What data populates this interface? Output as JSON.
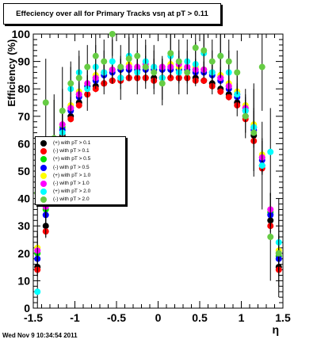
{
  "footer_text": "Wed Nov  9 10:34:54 2011",
  "chart_data": {
    "type": "scatter",
    "title": "Effeciency over all for Primary Tracks vsη at pT > 0.11",
    "xlabel": "η",
    "ylabel": "Efficiency (%)",
    "xlim": [
      -1.5,
      1.5
    ],
    "ylim": [
      0,
      100
    ],
    "x_ticks": [
      "-1.5",
      "-1",
      "-0.5",
      "0",
      "0.5",
      "1",
      "1.5"
    ],
    "y_ticks": [
      "0",
      "10",
      "20",
      "30",
      "40",
      "50",
      "60",
      "70",
      "80",
      "90",
      "100"
    ],
    "grid": false,
    "legend_position": "center-left",
    "series": [
      {
        "name": "(+) with pT > 0.1",
        "color": "#000000",
        "x": [
          -1.45,
          -1.35,
          -1.25,
          -1.15,
          -1.05,
          -0.95,
          -0.85,
          -0.75,
          -0.65,
          -0.55,
          -0.45,
          -0.35,
          -0.25,
          -0.15,
          -0.05,
          0.05,
          0.15,
          0.25,
          0.35,
          0.45,
          0.55,
          0.65,
          0.75,
          0.85,
          0.95,
          1.05,
          1.15,
          1.25,
          1.35,
          1.45
        ],
        "y": [
          15,
          30,
          50,
          63,
          70,
          75,
          78,
          81,
          82,
          83,
          84,
          84,
          84,
          84,
          84,
          84,
          84,
          84,
          84,
          84,
          83,
          82,
          80,
          78,
          75,
          70,
          63,
          52,
          32,
          15
        ]
      },
      {
        "name": "(-) with pT > 0.1",
        "color": "#ff0000",
        "x": [
          -1.45,
          -1.35,
          -1.25,
          -1.15,
          -1.05,
          -0.95,
          -0.85,
          -0.75,
          -0.65,
          -0.55,
          -0.45,
          -0.35,
          -0.25,
          -0.15,
          -0.05,
          0.05,
          0.15,
          0.25,
          0.35,
          0.45,
          0.55,
          0.65,
          0.75,
          0.85,
          0.95,
          1.05,
          1.15,
          1.25,
          1.35,
          1.45
        ],
        "y": [
          14,
          28,
          48,
          62,
          69,
          74,
          78,
          80,
          82,
          83,
          83,
          84,
          84,
          84,
          83,
          84,
          84,
          84,
          84,
          83,
          83,
          81,
          79,
          77,
          74,
          69,
          61,
          51,
          30,
          14
        ]
      },
      {
        "name": "(+) with pT > 0.5",
        "color": "#00dd00",
        "x": [
          -1.45,
          -1.35,
          -1.25,
          -1.15,
          -1.05,
          -0.95,
          -0.85,
          -0.75,
          -0.65,
          -0.55,
          -0.45,
          -0.35,
          -0.25,
          -0.15,
          -0.05,
          0.05,
          0.15,
          0.25,
          0.35,
          0.45,
          0.55,
          0.65,
          0.75,
          0.85,
          0.95,
          1.05,
          1.15,
          1.25,
          1.35,
          1.45
        ],
        "y": [
          20,
          36,
          55,
          66,
          73,
          78,
          81,
          84,
          86,
          87,
          87,
          88,
          88,
          88,
          87,
          88,
          88,
          87,
          88,
          87,
          87,
          86,
          84,
          81,
          78,
          73,
          66,
          55,
          35,
          19
        ]
      },
      {
        "name": "(-) with pT > 0.5",
        "color": "#0000ff",
        "x": [
          -1.45,
          -1.35,
          -1.25,
          -1.15,
          -1.05,
          -0.95,
          -0.85,
          -0.75,
          -0.65,
          -0.55,
          -0.45,
          -0.35,
          -0.25,
          -0.15,
          -0.05,
          0.05,
          0.15,
          0.25,
          0.35,
          0.45,
          0.55,
          0.65,
          0.75,
          0.85,
          0.95,
          1.05,
          1.15,
          1.25,
          1.35,
          1.45
        ],
        "y": [
          18,
          34,
          54,
          65,
          72,
          77,
          81,
          83,
          85,
          86,
          87,
          87,
          87,
          87,
          87,
          87,
          87,
          87,
          87,
          86,
          86,
          85,
          83,
          80,
          77,
          72,
          65,
          54,
          34,
          18
        ]
      },
      {
        "name": "(+) with pT > 1.0",
        "color": "#ffff00",
        "x": [
          -1.45,
          -1.35,
          -1.25,
          -1.15,
          -1.05,
          -0.95,
          -0.85,
          -0.75,
          -0.65,
          -0.55,
          -0.45,
          -0.35,
          -0.25,
          -0.15,
          -0.05,
          0.05,
          0.15,
          0.25,
          0.35,
          0.45,
          0.55,
          0.65,
          0.75,
          0.85,
          0.95,
          1.05,
          1.15,
          1.25,
          1.35,
          1.45
        ],
        "y": [
          22,
          38,
          56,
          67,
          74,
          79,
          82,
          85,
          86,
          87,
          88,
          89,
          88,
          88,
          88,
          88,
          89,
          88,
          88,
          88,
          87,
          86,
          85,
          82,
          79,
          74,
          67,
          56,
          36,
          21
        ]
      },
      {
        "name": "(-) with pT > 1.0",
        "color": "#ff00ff",
        "x": [
          -1.45,
          -1.35,
          -1.25,
          -1.15,
          -1.05,
          -0.95,
          -0.85,
          -0.75,
          -0.65,
          -0.55,
          -0.45,
          -0.35,
          -0.25,
          -0.15,
          -0.05,
          0.05,
          0.15,
          0.25,
          0.35,
          0.45,
          0.55,
          0.65,
          0.75,
          0.85,
          0.95,
          1.05,
          1.15,
          1.25,
          1.35,
          1.45
        ],
        "y": [
          21,
          37,
          56,
          67,
          73,
          78,
          82,
          84,
          86,
          87,
          88,
          88,
          88,
          89,
          88,
          88,
          88,
          89,
          88,
          87,
          87,
          86,
          84,
          81,
          78,
          73,
          66,
          55,
          36,
          20
        ]
      },
      {
        "name": "(+) with pT > 2.0",
        "color": "#00ffff",
        "x": [
          -1.45,
          -1.35,
          -1.25,
          -1.15,
          -1.05,
          -0.95,
          -0.85,
          -0.75,
          -0.65,
          -0.55,
          -0.45,
          -0.35,
          -0.25,
          -0.15,
          -0.05,
          0.05,
          0.15,
          0.25,
          0.35,
          0.45,
          0.55,
          0.65,
          0.75,
          0.85,
          0.95,
          1.05,
          1.15,
          1.25,
          1.35,
          1.45
        ],
        "y": [
          6,
          42,
          60,
          64,
          80,
          86,
          80,
          88,
          86,
          90,
          84,
          92,
          86,
          90,
          88,
          84,
          92,
          86,
          90,
          89,
          93,
          86,
          92,
          86,
          78,
          72,
          66,
          52,
          57,
          24
        ]
      },
      {
        "name": "(-) with pT > 2.0",
        "color": "#66cc44",
        "x": [
          -1.45,
          -1.35,
          -1.25,
          -1.15,
          -1.05,
          -0.95,
          -0.85,
          -0.75,
          -0.65,
          -0.55,
          -0.45,
          -0.35,
          -0.25,
          -0.15,
          -0.05,
          0.05,
          0.15,
          0.25,
          0.35,
          0.45,
          0.55,
          0.65,
          0.75,
          0.85,
          0.95,
          1.05,
          1.15,
          1.25,
          1.35,
          1.45
        ],
        "y": [
          42,
          75,
          62,
          72,
          82,
          84,
          88,
          92,
          90,
          100,
          88,
          91,
          92,
          88,
          86,
          82,
          93,
          90,
          86,
          95,
          94,
          90,
          92,
          90,
          86,
          70,
          64,
          88,
          26,
          20
        ]
      }
    ]
  }
}
